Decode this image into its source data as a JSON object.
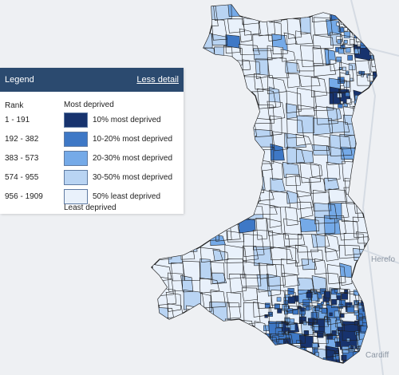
{
  "legend": {
    "title": "Legend",
    "toggle_label": "Less detail",
    "rank_heading": "Rank",
    "most_label": "Most deprived",
    "least_label": "Least deprived",
    "items": [
      {
        "rank": "1 - 191",
        "label": "10% most deprived",
        "color": "#17336e"
      },
      {
        "rank": "192 - 382",
        "label": "10-20% most deprived",
        "color": "#3e78c6"
      },
      {
        "rank": "383 - 573",
        "label": "20-30% most deprived",
        "color": "#75aae8"
      },
      {
        "rank": "574 - 955",
        "label": "30-50% most deprived",
        "color": "#b9d4f3"
      },
      {
        "rank": "956 - 1909",
        "label": "50% least deprived",
        "color": "#e9f1fb"
      }
    ]
  },
  "basemap": {
    "place_labels": [
      "Herefo",
      "Cardiff"
    ]
  },
  "colors": {
    "map_background": "#eef0f3",
    "land_fill": "#e9f1fb",
    "boundary": "#1f1f1f",
    "legend_header": "#2b4a6f"
  }
}
